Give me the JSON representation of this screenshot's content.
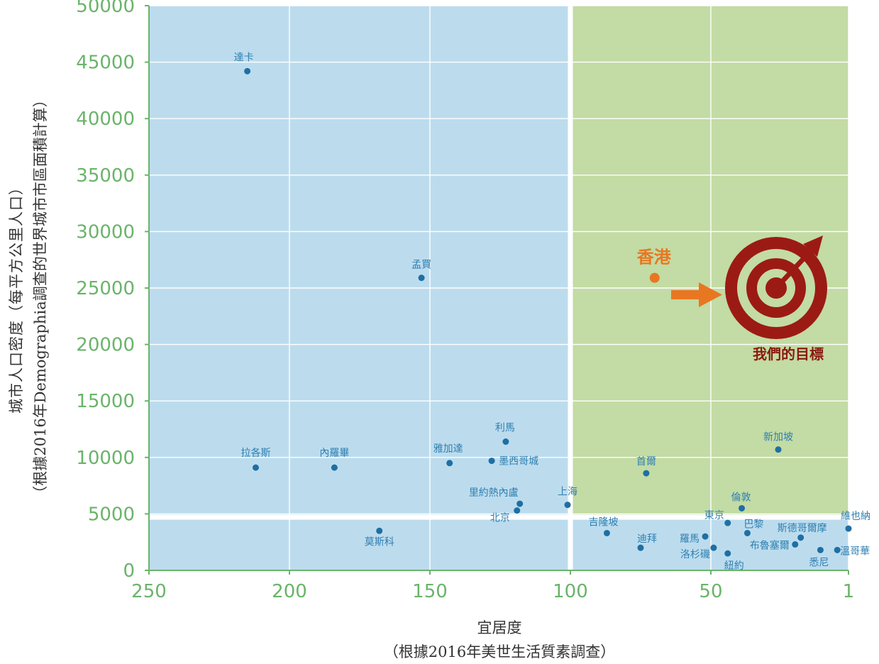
{
  "chart_data": {
    "type": "scatter",
    "xlabel_line1": "宜居度",
    "xlabel_line2": "（根據2016年美世生活質素調查）",
    "ylabel_line1": "城市人口密度（每平方公里人口）",
    "ylabel_line2": "（根據2016年Demographia調查的世界城市市區面積計算）",
    "xlim": [
      250,
      1
    ],
    "ylim": [
      0,
      50000
    ],
    "x_ticks": [
      "250",
      "200",
      "150",
      "100",
      "50",
      "1"
    ],
    "x_tick_values": [
      250,
      200,
      150,
      100,
      50,
      1
    ],
    "y_ticks": [
      "0",
      "5000",
      "10000",
      "15000",
      "20000",
      "25000",
      "30000",
      "35000",
      "40000",
      "45000",
      "50000"
    ],
    "y_tick_values": [
      0,
      5000,
      10000,
      15000,
      20000,
      25000,
      30000,
      35000,
      40000,
      45000,
      50000
    ],
    "grid": true,
    "quadrant_divider": {
      "x": 100,
      "y": 4700
    },
    "colors": {
      "low_livability_zone": "#bcdcee",
      "target_zone": "#c3dba4",
      "point": "#1f6fa3",
      "label": "#2f7fb0",
      "tick": "#6ab46a",
      "hong_kong": "#e87722",
      "target_icon": "#9b1b14"
    },
    "points": [
      {
        "name": "達卡",
        "x": 215,
        "y": 44200
      },
      {
        "name": "孟買",
        "x": 153,
        "y": 25900
      },
      {
        "name": "拉各斯",
        "x": 212,
        "y": 9100
      },
      {
        "name": "內羅畢",
        "x": 184,
        "y": 9100
      },
      {
        "name": "莫斯科",
        "x": 168,
        "y": 3500
      },
      {
        "name": "雅加達",
        "x": 143,
        "y": 9500
      },
      {
        "name": "利馬",
        "x": 123,
        "y": 11400
      },
      {
        "name": "墨西哥城",
        "x": 128,
        "y": 9700
      },
      {
        "name": "里約熱內盧",
        "x": 118,
        "y": 5900
      },
      {
        "name": "北京",
        "x": 119,
        "y": 5300
      },
      {
        "name": "上海",
        "x": 101,
        "y": 5800
      },
      {
        "name": "吉隆坡",
        "x": 87,
        "y": 3300
      },
      {
        "name": "迪拜",
        "x": 75,
        "y": 2000
      },
      {
        "name": "首爾",
        "x": 73,
        "y": 8600
      },
      {
        "name": "羅馬",
        "x": 52,
        "y": 3000
      },
      {
        "name": "洛杉磯",
        "x": 49,
        "y": 2000
      },
      {
        "name": "東京",
        "x": 44,
        "y": 4200
      },
      {
        "name": "紐約",
        "x": 44,
        "y": 1500
      },
      {
        "name": "倫敦",
        "x": 39,
        "y": 5500
      },
      {
        "name": "巴黎",
        "x": 37,
        "y": 3300
      },
      {
        "name": "布魯塞爾",
        "x": 20,
        "y": 2300
      },
      {
        "name": "斯德哥爾摩",
        "x": 18,
        "y": 2900
      },
      {
        "name": "新加坡",
        "x": 26,
        "y": 10700
      },
      {
        "name": "悉尼",
        "x": 11,
        "y": 1800
      },
      {
        "name": "溫哥華",
        "x": 5,
        "y": 1800
      },
      {
        "name": "維也納",
        "x": 1,
        "y": 3700
      }
    ],
    "highlight": {
      "name": "香港",
      "x": 70,
      "y": 25900
    },
    "target_label": "我們的目標"
  }
}
